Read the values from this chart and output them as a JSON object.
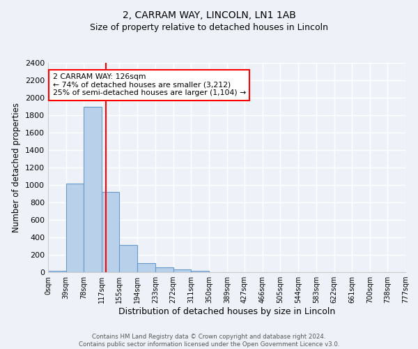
{
  "title_line1": "2, CARRAM WAY, LINCOLN, LN1 1AB",
  "title_line2": "Size of property relative to detached houses in Lincoln",
  "xlabel": "Distribution of detached houses by size in Lincoln",
  "ylabel": "Number of detached properties",
  "bar_edges": [
    0,
    39,
    78,
    117,
    155,
    194,
    233,
    272,
    311,
    350,
    389,
    427,
    466,
    505,
    544,
    583,
    622,
    661,
    700,
    738,
    777
  ],
  "bar_heights": [
    20,
    1020,
    1900,
    920,
    310,
    105,
    55,
    30,
    20,
    0,
    0,
    0,
    0,
    0,
    0,
    0,
    0,
    0,
    0,
    0
  ],
  "bar_color": "#b8d0ea",
  "bar_edge_color": "#6699cc",
  "bar_linewidth": 0.8,
  "vline_x": 126,
  "vline_color": "red",
  "vline_linewidth": 1.5,
  "annotation_text": "2 CARRAM WAY: 126sqm\n← 74% of detached houses are smaller (3,212)\n25% of semi-detached houses are larger (1,104) →",
  "annotation_box_color": "white",
  "annotation_box_edge_color": "red",
  "ylim": [
    0,
    2400
  ],
  "yticks": [
    0,
    200,
    400,
    600,
    800,
    1000,
    1200,
    1400,
    1600,
    1800,
    2000,
    2200,
    2400
  ],
  "bg_color": "#eef2f8",
  "axes_bg_color": "#eef2f8",
  "grid_color": "white",
  "footer_text": "Contains HM Land Registry data © Crown copyright and database right 2024.\nContains public sector information licensed under the Open Government Licence v3.0.",
  "tick_labels": [
    "0sqm",
    "39sqm",
    "78sqm",
    "117sqm",
    "155sqm",
    "194sqm",
    "233sqm",
    "272sqm",
    "311sqm",
    "350sqm",
    "389sqm",
    "427sqm",
    "466sqm",
    "505sqm",
    "544sqm",
    "583sqm",
    "622sqm",
    "661sqm",
    "700sqm",
    "738sqm",
    "777sqm"
  ],
  "title1_fontsize": 10,
  "title2_fontsize": 9,
  "xlabel_fontsize": 9,
  "ylabel_fontsize": 8.5,
  "ytick_fontsize": 8,
  "xtick_fontsize": 7
}
